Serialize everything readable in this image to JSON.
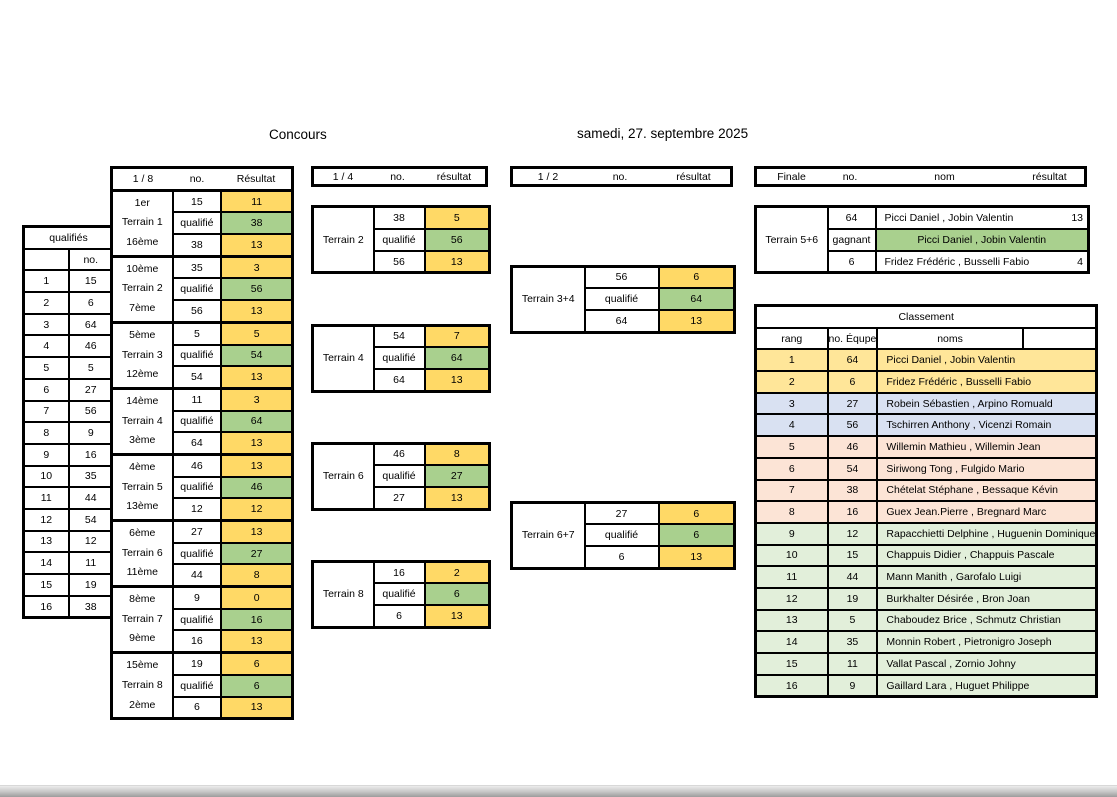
{
  "page": {
    "title": "Concours",
    "date": "samedi, 27. septembre 2025"
  },
  "colors": {
    "result_yellow": "#FFD966",
    "qualified_green": "#A9D08E",
    "band_gold": "#FFE699",
    "band_blue": "#D9E1F2",
    "band_pink": "#FCE4D6",
    "band_green": "#E2EFDA"
  },
  "qualifies": {
    "title": "qualifiés",
    "no_header": "no.",
    "rows": [
      [
        "1",
        "15"
      ],
      [
        "2",
        "6"
      ],
      [
        "3",
        "64"
      ],
      [
        "4",
        "46"
      ],
      [
        "5",
        "5"
      ],
      [
        "6",
        "27"
      ],
      [
        "7",
        "56"
      ],
      [
        "8",
        "9"
      ],
      [
        "9",
        "16"
      ],
      [
        "10",
        "35"
      ],
      [
        "11",
        "44"
      ],
      [
        "12",
        "54"
      ],
      [
        "13",
        "12"
      ],
      [
        "14",
        "11"
      ],
      [
        "15",
        "19"
      ],
      [
        "16",
        "38"
      ]
    ]
  },
  "eighth": {
    "headers": [
      "1 / 8",
      "no.",
      "Résultat"
    ],
    "groups": [
      {
        "labels": [
          "1er",
          "Terrain 1",
          "16ème"
        ],
        "rows": [
          [
            "15",
            "11"
          ],
          [
            "qualifié",
            "38"
          ],
          [
            "38",
            "13"
          ]
        ]
      },
      {
        "labels": [
          "10ème",
          "Terrain 2",
          "7ème"
        ],
        "rows": [
          [
            "35",
            "3"
          ],
          [
            "qualifié",
            "56"
          ],
          [
            "56",
            "13"
          ]
        ]
      },
      {
        "labels": [
          "5ème",
          "Terrain 3",
          "12ème"
        ],
        "rows": [
          [
            "5",
            "5"
          ],
          [
            "qualifié",
            "54"
          ],
          [
            "54",
            "13"
          ]
        ]
      },
      {
        "labels": [
          "14ème",
          "Terrain 4",
          "3ème"
        ],
        "rows": [
          [
            "11",
            "3"
          ],
          [
            "qualifié",
            "64"
          ],
          [
            "64",
            "13"
          ]
        ]
      },
      {
        "labels": [
          "4ème",
          "Terrain 5",
          "13ème"
        ],
        "rows": [
          [
            "46",
            "13"
          ],
          [
            "qualifié",
            "46"
          ],
          [
            "12",
            "12"
          ]
        ]
      },
      {
        "labels": [
          "6ème",
          "Terrain 6",
          "11ème"
        ],
        "rows": [
          [
            "27",
            "13"
          ],
          [
            "qualifié",
            "27"
          ],
          [
            "44",
            "8"
          ]
        ]
      },
      {
        "labels": [
          "8ème",
          "Terrain 7",
          "9ème"
        ],
        "rows": [
          [
            "9",
            "0"
          ],
          [
            "qualifié",
            "16"
          ],
          [
            "16",
            "13"
          ]
        ]
      },
      {
        "labels": [
          "15ème",
          "Terrain 8",
          "2ème"
        ],
        "rows": [
          [
            "19",
            "6"
          ],
          [
            "qualifié",
            "6"
          ],
          [
            "6",
            "13"
          ]
        ]
      }
    ]
  },
  "quarter": {
    "headers": [
      "1 / 4",
      "no.",
      "résultat"
    ],
    "blocks": [
      {
        "label": "Terrain 2",
        "rows": [
          [
            "38",
            "5"
          ],
          [
            "qualifié",
            "56"
          ],
          [
            "56",
            "13"
          ]
        ]
      },
      {
        "label": "Terrain 4",
        "rows": [
          [
            "54",
            "7"
          ],
          [
            "qualifié",
            "64"
          ],
          [
            "64",
            "13"
          ]
        ]
      },
      {
        "label": "Terrain 6",
        "rows": [
          [
            "46",
            "8"
          ],
          [
            "qualifié",
            "27"
          ],
          [
            "27",
            "13"
          ]
        ]
      },
      {
        "label": "Terrain 8",
        "rows": [
          [
            "16",
            "2"
          ],
          [
            "qualifié",
            "6"
          ],
          [
            "6",
            "13"
          ]
        ]
      }
    ]
  },
  "half": {
    "headers": [
      "1 / 2",
      "no.",
      "résultat"
    ],
    "blocks": [
      {
        "label": "Terrain 3+4",
        "rows": [
          [
            "56",
            "6"
          ],
          [
            "qualifié",
            "64"
          ],
          [
            "64",
            "13"
          ]
        ]
      },
      {
        "label": "Terrain 6+7",
        "rows": [
          [
            "27",
            "6"
          ],
          [
            "qualifié",
            "6"
          ],
          [
            "6",
            "13"
          ]
        ]
      }
    ]
  },
  "finale": {
    "headers": [
      "Finale",
      "no.",
      "nom",
      "résultat"
    ],
    "block": {
      "label": "Terrain 5+6",
      "rows": [
        {
          "no": "64",
          "nom": "Picci Daniel ,  Jobin Valentin",
          "result": "13",
          "winner": false
        },
        {
          "no": "gagnant",
          "nom": "Picci Daniel ,  Jobin Valentin",
          "result": "",
          "winner": true
        },
        {
          "no": "6",
          "nom": "Fridez Frédéric ,  Busselli Fabio",
          "result": "4",
          "winner": false
        }
      ]
    }
  },
  "classement": {
    "title": "Classement",
    "headers": [
      "rang",
      "no. Équpe",
      "noms"
    ],
    "rows": [
      {
        "rang": "1",
        "no": "64",
        "noms": "Picci Daniel ,  Jobin Valentin",
        "band": "gold"
      },
      {
        "rang": "2",
        "no": "6",
        "noms": "Fridez Frédéric ,  Busselli Fabio",
        "band": "gold"
      },
      {
        "rang": "3",
        "no": "27",
        "noms": "Robein Sébastien ,  Arpino Romuald",
        "band": "blue"
      },
      {
        "rang": "4",
        "no": "56",
        "noms": "Tschirren Anthony ,  Vicenzi Romain",
        "band": "blue"
      },
      {
        "rang": "5",
        "no": "46",
        "noms": "Willemin Mathieu ,  Willemin Jean",
        "band": "pink"
      },
      {
        "rang": "6",
        "no": "54",
        "noms": "Siriwong Tong ,  Fulgido Mario",
        "band": "pink"
      },
      {
        "rang": "7",
        "no": "38",
        "noms": "Chételat Stéphane ,  Bessaque Kévin",
        "band": "pink"
      },
      {
        "rang": "8",
        "no": "16",
        "noms": "Guex Jean.Pierre ,  Bregnard Marc",
        "band": "pink"
      },
      {
        "rang": "9",
        "no": "12",
        "noms": "Rapacchietti Delphine ,  Huguenin Dominique",
        "band": "green"
      },
      {
        "rang": "10",
        "no": "15",
        "noms": "Chappuis Didier ,  Chappuis Pascale",
        "band": "green"
      },
      {
        "rang": "11",
        "no": "44",
        "noms": "Mann Manith ,  Garofalo Luigi",
        "band": "green"
      },
      {
        "rang": "12",
        "no": "19",
        "noms": "Burkhalter Désirée ,  Bron Joan",
        "band": "green"
      },
      {
        "rang": "13",
        "no": "5",
        "noms": "Chaboudez Brice ,  Schmutz Christian",
        "band": "green"
      },
      {
        "rang": "14",
        "no": "35",
        "noms": "Monnin Robert ,  Pietronigro Joseph",
        "band": "green"
      },
      {
        "rang": "15",
        "no": "11",
        "noms": "Vallat Pascal ,  Zornio Johny",
        "band": "green"
      },
      {
        "rang": "16",
        "no": "9",
        "noms": "Gaillard Lara ,  Huguet Philippe",
        "band": "green"
      }
    ]
  }
}
